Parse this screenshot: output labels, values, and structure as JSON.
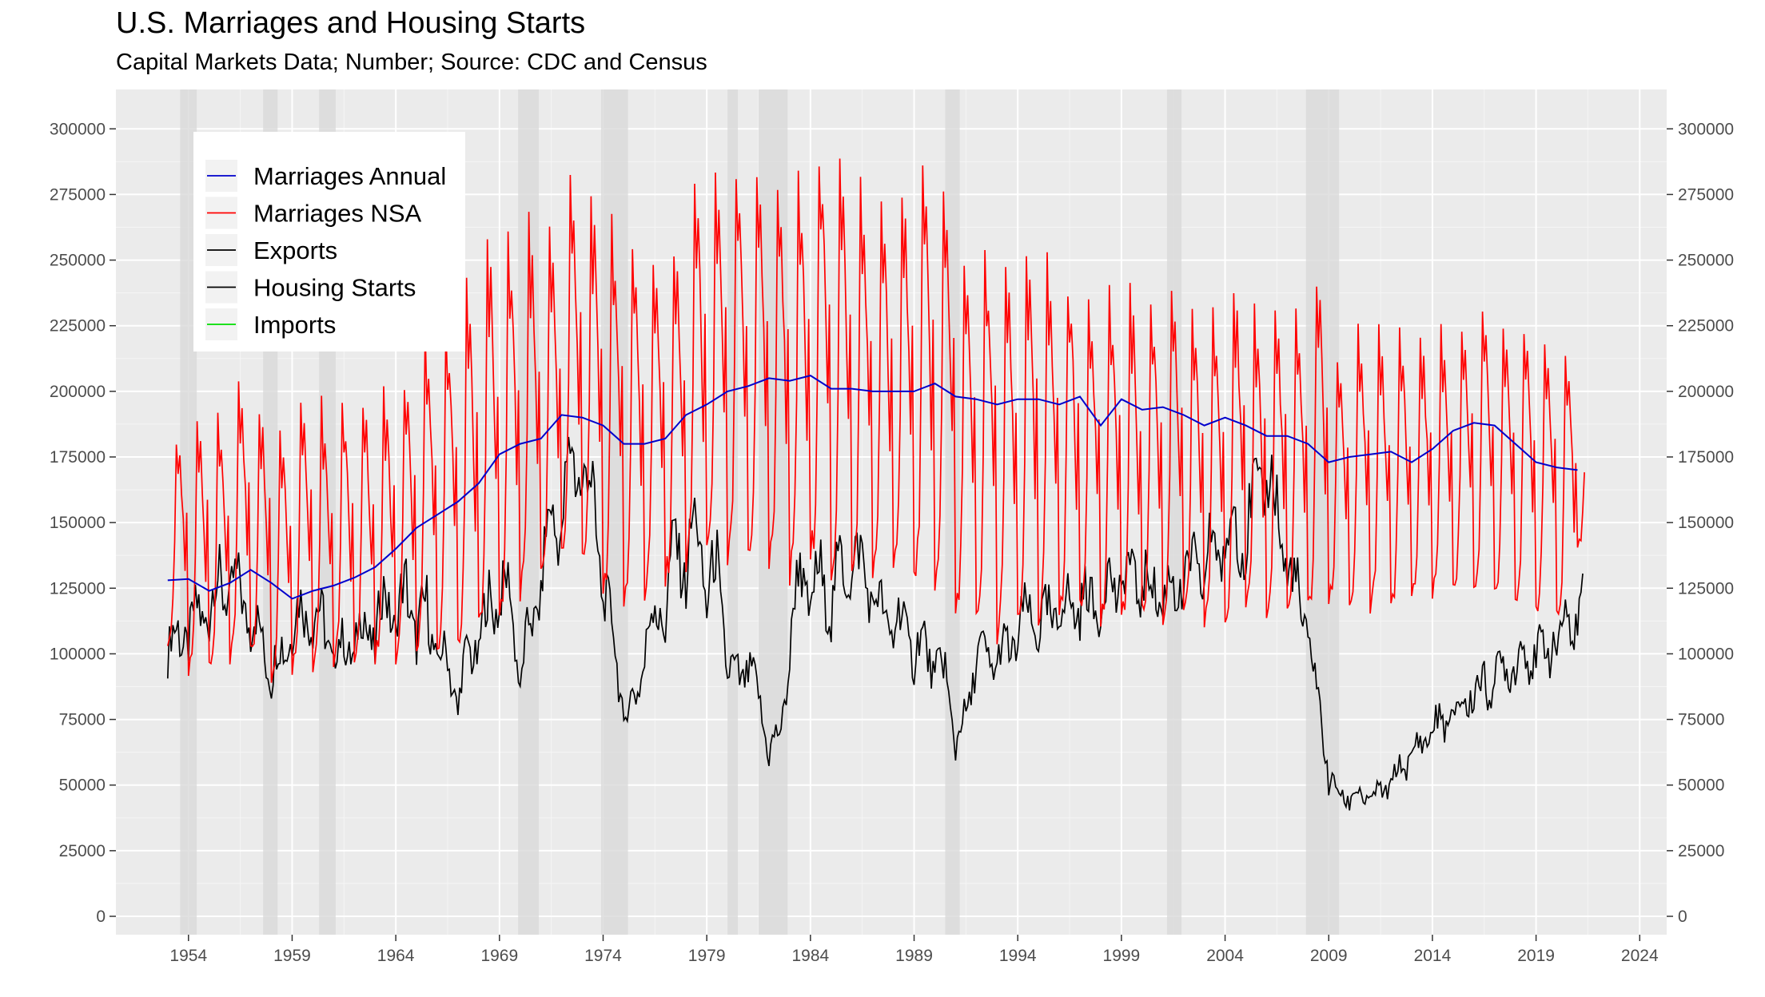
{
  "chart_data": {
    "type": "line",
    "title": "U.S. Marriages and Housing Starts",
    "subtitle": "Capital Markets Data; Number; Source: CDC and Census",
    "xlabel": "",
    "ylabel": "",
    "xlim": [
      1950.5,
      2025.3
    ],
    "ylim": [
      -7000,
      315000
    ],
    "x_ticks": [
      1954,
      1959,
      1964,
      1969,
      1974,
      1979,
      1984,
      1989,
      1994,
      1999,
      2004,
      2009,
      2014,
      2019,
      2024
    ],
    "x_tick_labels": [
      "1954",
      "1959",
      "1964",
      "1969",
      "1974",
      "1979",
      "1984",
      "1989",
      "1994",
      "1999",
      "2004",
      "2009",
      "2014",
      "2019",
      "2024"
    ],
    "y_ticks": [
      0,
      25000,
      50000,
      75000,
      100000,
      125000,
      150000,
      175000,
      200000,
      225000,
      250000,
      275000,
      300000
    ],
    "y_tick_labels": [
      "0",
      "25000",
      "50000",
      "75000",
      "100000",
      "125000",
      "150000",
      "175000",
      "200000",
      "225000",
      "250000",
      "275000",
      "300000"
    ],
    "y_axis_right": true,
    "grid": true,
    "legend_position": "top-left",
    "colors": {
      "panel": "#ebebeb",
      "grid_major": "#ffffff",
      "recession": "#d9d9d9",
      "annual": "#0000cc",
      "nsa": "#ff0000",
      "housing": "#000000",
      "imports": "#00dd00"
    },
    "recessions": [
      [
        1953.6,
        1954.4
      ],
      [
        1957.6,
        1958.3
      ],
      [
        1960.3,
        1961.1
      ],
      [
        1969.9,
        1970.9
      ],
      [
        1973.9,
        1975.2
      ],
      [
        1980.0,
        1980.5
      ],
      [
        1981.5,
        1982.9
      ],
      [
        1990.5,
        1991.2
      ],
      [
        2001.2,
        2001.9
      ],
      [
        2007.9,
        2009.5
      ]
    ],
    "series": [
      {
        "name": "Marriages Annual",
        "color": "#0000cc",
        "x": [
          1953,
          1954,
          1955,
          1956,
          1957,
          1958,
          1959,
          1960,
          1961,
          1962,
          1963,
          1964,
          1965,
          1966,
          1967,
          1968,
          1969,
          1970,
          1971,
          1972,
          1973,
          1974,
          1975,
          1976,
          1977,
          1978,
          1979,
          1980,
          1981,
          1982,
          1983,
          1984,
          1985,
          1986,
          1987,
          1988,
          1989,
          1990,
          1991,
          1992,
          1993,
          1994,
          1995,
          1996,
          1997,
          1998,
          1999,
          2000,
          2001,
          2002,
          2003,
          2004,
          2005,
          2006,
          2007,
          2008,
          2009,
          2010,
          2011,
          2012,
          2013,
          2014,
          2015,
          2016,
          2017,
          2018,
          2019,
          2020,
          2021
        ],
        "values": [
          128000,
          128500,
          124000,
          127000,
          132000,
          127000,
          121000,
          124000,
          126000,
          129000,
          133000,
          140000,
          148000,
          153000,
          158000,
          165000,
          176000,
          180000,
          182000,
          191000,
          190000,
          187000,
          180000,
          180000,
          182000,
          191000,
          195000,
          200000,
          202000,
          205000,
          204000,
          206000,
          201000,
          201000,
          200000,
          200000,
          200000,
          203000,
          198000,
          197000,
          195000,
          197000,
          197000,
          195000,
          198000,
          187000,
          197000,
          193000,
          194000,
          191000,
          187000,
          190000,
          187000,
          183000,
          183000,
          180000,
          173000,
          175000,
          176000,
          177000,
          173000,
          178000,
          185000,
          188000,
          187000,
          180000,
          173000,
          171000,
          170000
        ]
      },
      {
        "name": "Marriages NSA",
        "color": "#ff0000",
        "monthly": true,
        "start": 1953.0,
        "annual_peaks_x": [
          1953,
          1954,
          1955,
          1956,
          1957,
          1958,
          1959,
          1960,
          1961,
          1962,
          1963,
          1964,
          1965,
          1966,
          1967,
          1968,
          1969,
          1970,
          1971,
          1972,
          1973,
          1974,
          1975,
          1976,
          1977,
          1978,
          1979,
          1980,
          1981,
          1982,
          1983,
          1984,
          1985,
          1986,
          1987,
          1988,
          1989,
          1990,
          1991,
          1992,
          1993,
          1994,
          1995,
          1996,
          1997,
          1998,
          1999,
          2000,
          2001,
          2002,
          2003,
          2004,
          2005,
          2006,
          2007,
          2008,
          2009,
          2010,
          2011,
          2012,
          2013,
          2014,
          2015,
          2016,
          2017,
          2018,
          2019,
          2020,
          2021
        ],
        "annual_peaks": [
          186000,
          197000,
          193000,
          213000,
          199000,
          193000,
          205000,
          200000,
          199000,
          201000,
          205000,
          210000,
          226000,
          232000,
          245000,
          265000,
          264000,
          270000,
          266000,
          288000,
          280000,
          270000,
          262000,
          258000,
          262000,
          288000,
          290000,
          291000,
          293000,
          286000,
          287000,
          299000,
          295000,
          285000,
          282000,
          287000,
          291000,
          288000,
          256000,
          259000,
          255000,
          262000,
          261000,
          248000,
          243000,
          243000,
          244000,
          240000,
          243000,
          236000,
          235000,
          246000,
          237000,
          237000,
          235000,
          251000,
          219000,
          227000,
          227000,
          227000,
          226000,
          228000,
          231000,
          235000,
          233000,
          228000,
          225000,
          221000,
          210000
        ],
        "annual_troughs": [
          103000,
          91000,
          93000,
          96000,
          98000,
          89000,
          92000,
          93000,
          95000,
          95000,
          96000,
          96000,
          101000,
          99000,
          101000,
          108000,
          112000,
          120000,
          127000,
          136000,
          130000,
          122000,
          118000,
          120000,
          125000,
          130000,
          133000,
          132000,
          132000,
          130000,
          126000,
          133000,
          128000,
          127000,
          124000,
          125000,
          125000,
          120000,
          111000,
          108000,
          103000,
          106000,
          106000,
          112000,
          113000,
          109000,
          108000,
          112000,
          111000,
          110000,
          110000,
          112000,
          112000,
          112000,
          113000,
          114000,
          117000,
          116000,
          115000,
          117000,
          119000,
          121000,
          122000,
          124000,
          122000,
          119000,
          115000,
          111000,
          140000
        ]
      },
      {
        "name": "Exports",
        "color": "#000000",
        "values": []
      },
      {
        "name": "Housing Starts",
        "color": "#000000",
        "monthly": true,
        "start": 1953.0,
        "anchor_x": [
          1953.0,
          1953.5,
          1954.0,
          1954.5,
          1955.0,
          1955.5,
          1956.0,
          1956.5,
          1957.0,
          1957.5,
          1958.0,
          1958.5,
          1959.0,
          1959.5,
          1960.0,
          1960.5,
          1961.0,
          1961.5,
          1962.0,
          1962.5,
          1963.0,
          1963.5,
          1964.0,
          1964.5,
          1965.0,
          1965.5,
          1966.0,
          1966.5,
          1967.0,
          1967.5,
          1968.0,
          1968.5,
          1969.0,
          1969.5,
          1970.0,
          1970.5,
          1971.0,
          1971.5,
          1972.0,
          1972.5,
          1973.0,
          1973.5,
          1974.0,
          1974.5,
          1975.0,
          1975.5,
          1976.0,
          1976.5,
          1977.0,
          1977.5,
          1978.0,
          1978.5,
          1979.0,
          1979.5,
          1980.0,
          1980.5,
          1981.0,
          1981.5,
          1982.0,
          1982.5,
          1983.0,
          1983.5,
          1984.0,
          1984.5,
          1985.0,
          1985.5,
          1986.0,
          1986.5,
          1987.0,
          1987.5,
          1988.0,
          1988.5,
          1989.0,
          1989.5,
          1990.0,
          1990.5,
          1991.0,
          1991.5,
          1992.0,
          1992.5,
          1993.0,
          1993.5,
          1994.0,
          1994.5,
          1995.0,
          1995.5,
          1996.0,
          1996.5,
          1997.0,
          1997.5,
          1998.0,
          1998.5,
          1999.0,
          1999.5,
          2000.0,
          2000.5,
          2001.0,
          2001.5,
          2002.0,
          2002.5,
          2003.0,
          2003.5,
          2004.0,
          2004.5,
          2005.0,
          2005.5,
          2006.0,
          2006.5,
          2007.0,
          2007.5,
          2008.0,
          2008.5,
          2009.0,
          2009.5,
          2010.0,
          2010.5,
          2011.0,
          2011.5,
          2012.0,
          2012.5,
          2013.0,
          2013.5,
          2014.0,
          2014.5,
          2015.0,
          2015.5,
          2016.0,
          2016.5,
          2017.0,
          2017.5,
          2018.0,
          2018.5,
          2019.0,
          2019.5,
          2020.0,
          2020.5,
          2021.0,
          2021.3
        ],
        "anchor_values": [
          92000,
          118000,
          96000,
          128000,
          104000,
          140000,
          112000,
          138000,
          100000,
          118000,
          82000,
          112000,
          98000,
          130000,
          102000,
          124000,
          88000,
          114000,
          92000,
          124000,
          94000,
          136000,
          100000,
          138000,
          96000,
          130000,
          88000,
          108000,
          72000,
          112000,
          92000,
          132000,
          108000,
          138000,
          78000,
          124000,
          112000,
          170000,
          132000,
          196000,
          150000,
          178000,
          110000,
          120000,
          66000,
          92000,
          90000,
          130000,
          102000,
          160000,
          116000,
          168000,
          108000,
          148000,
          84000,
          100000,
          86000,
          92000,
          56000,
          76000,
          90000,
          148000,
          106000,
          144000,
          104000,
          150000,
          118000,
          150000,
          108000,
          128000,
          98000,
          126000,
          88000,
          116000,
          84000,
          104000,
          58000,
          84000,
          90000,
          108000,
          88000,
          112000,
          96000,
          128000,
          98000,
          126000,
          104000,
          132000,
          106000,
          134000,
          106000,
          142000,
          112000,
          146000,
          112000,
          140000,
          108000,
          140000,
          112000,
          148000,
          116000,
          160000,
          122000,
          168000,
          126000,
          180000,
          150000,
          172000,
          118000,
          136000,
          96000,
          92000,
          46000,
          52000,
          40000,
          52000,
          40000,
          52000,
          46000,
          62000,
          56000,
          72000,
          66000,
          80000,
          70000,
          88000,
          78000,
          96000,
          82000,
          104000,
          88000,
          110000,
          90000,
          112000,
          96000,
          120000,
          104000,
          126000,
          130000,
          140000
        ]
      },
      {
        "name": "Imports",
        "color": "#00dd00",
        "values": []
      }
    ]
  }
}
